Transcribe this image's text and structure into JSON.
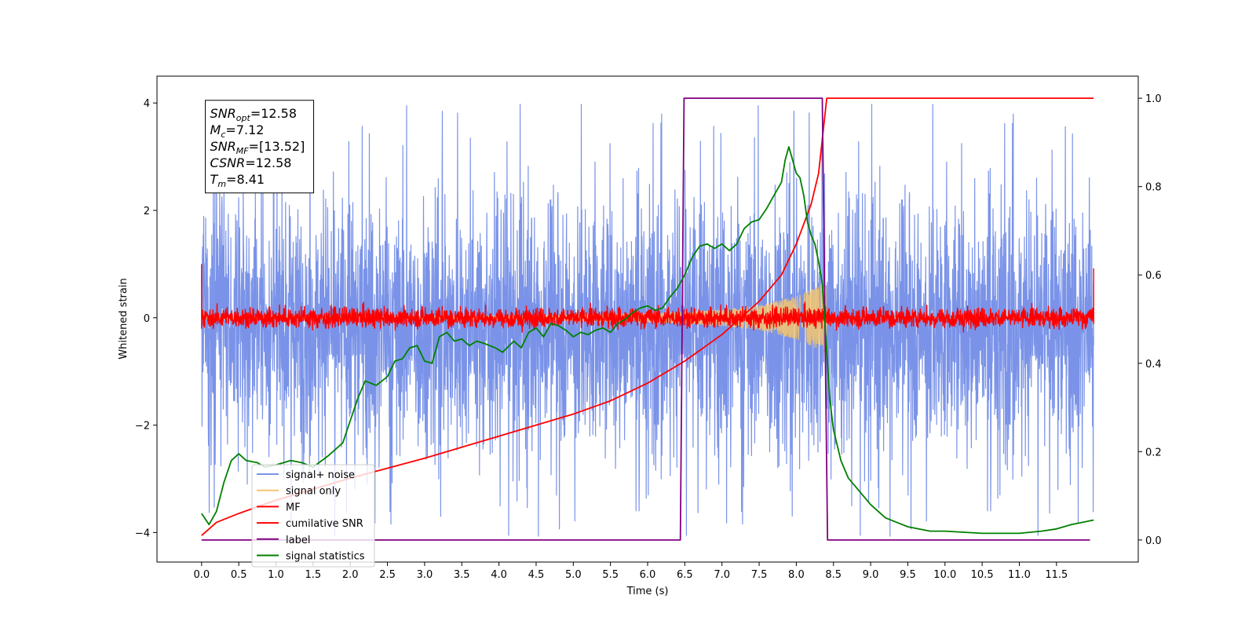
{
  "chart_data": {
    "type": "line",
    "xlabel": "Time (s)",
    "ylabel_left": "Whitened strain",
    "ylabel_right": "",
    "xlim": [
      -0.6,
      12.6
    ],
    "ylim_left": [
      -4.55,
      4.5
    ],
    "ylim_right": [
      -0.05,
      1.05
    ],
    "x_ticks": [
      0.0,
      0.5,
      1.0,
      1.5,
      2.0,
      2.5,
      3.0,
      3.5,
      4.0,
      4.5,
      5.0,
      5.5,
      6.0,
      6.5,
      7.0,
      7.5,
      8.0,
      8.5,
      9.0,
      9.5,
      10.0,
      10.5,
      11.0,
      11.5
    ],
    "x_tick_labels": [
      "0.0",
      "0.5",
      "1.0",
      "1.5",
      "2.0",
      "2.5",
      "3.0",
      "3.5",
      "4.0",
      "4.5",
      "5.0",
      "5.5",
      "6.0",
      "6.5",
      "7.0",
      "7.5",
      "8.0",
      "8.5",
      "9.0",
      "9.5",
      "10.0",
      "10.5",
      "11.0",
      "11.5"
    ],
    "y_ticks_left": [
      -4,
      -2,
      0,
      2,
      4
    ],
    "y_tick_labels_left": [
      "−4",
      "−2",
      "0",
      "2",
      "4"
    ],
    "y_ticks_right": [
      0.0,
      0.2,
      0.4,
      0.6,
      0.8,
      1.0
    ],
    "y_tick_labels_right": [
      "0.0",
      "0.2",
      "0.4",
      "0.6",
      "0.8",
      "1.0"
    ],
    "legend_placement": "lower-left",
    "annotation": {
      "lines": [
        {
          "main": "SNR",
          "sub": "opt",
          "value": "=12.58"
        },
        {
          "main": "M",
          "sub": "c",
          "value": "=7.12"
        },
        {
          "main": "SNR",
          "sub": "MF",
          "value": "=[13.52]"
        },
        {
          "main": "CSNR",
          "sub": "",
          "value": "=12.58"
        },
        {
          "main": "T",
          "sub": "m",
          "value": "=8.41"
        }
      ]
    },
    "series": [
      {
        "name": "signal+ noise",
        "axis": "left",
        "color": "#7a93e8",
        "kind": "noise_band",
        "x_range": [
          0.0,
          12.0
        ],
        "upper_envelope": [
          [
            0.0,
            1.3
          ],
          [
            0.5,
            1.3
          ],
          [
            1.0,
            1.3
          ],
          [
            2.0,
            1.4
          ],
          [
            3.0,
            1.3
          ],
          [
            4.0,
            1.3
          ],
          [
            5.0,
            1.3
          ],
          [
            6.0,
            1.3
          ],
          [
            6.5,
            1.4
          ],
          [
            7.0,
            1.4
          ],
          [
            7.5,
            1.4
          ],
          [
            8.0,
            1.5
          ],
          [
            8.4,
            1.5
          ],
          [
            8.5,
            1.3
          ],
          [
            9.0,
            1.3
          ],
          [
            10.0,
            1.3
          ],
          [
            11.0,
            1.3
          ],
          [
            12.0,
            1.3
          ]
        ],
        "lower_envelope": [
          [
            0.0,
            -1.6
          ],
          [
            1.0,
            -1.6
          ],
          [
            2.0,
            -1.6
          ],
          [
            3.0,
            -1.6
          ],
          [
            4.0,
            -1.6
          ],
          [
            5.0,
            -1.6
          ],
          [
            6.0,
            -1.6
          ],
          [
            7.0,
            -1.6
          ],
          [
            8.0,
            -1.7
          ],
          [
            8.4,
            -1.7
          ],
          [
            8.5,
            -1.6
          ],
          [
            10.0,
            -1.6
          ],
          [
            12.0,
            -1.6
          ]
        ],
        "spike_extent": [
          -4.15,
          4.1
        ]
      },
      {
        "name": "signal only",
        "axis": "left",
        "color": "#f5c56e",
        "kind": "chirp",
        "amplitude": [
          [
            0.0,
            0.02
          ],
          [
            4.0,
            0.04
          ],
          [
            5.0,
            0.06
          ],
          [
            6.0,
            0.09
          ],
          [
            6.5,
            0.11
          ],
          [
            7.0,
            0.16
          ],
          [
            7.5,
            0.23
          ],
          [
            8.0,
            0.4
          ],
          [
            8.3,
            0.6
          ],
          [
            8.4,
            0.68
          ],
          [
            8.41,
            0.0
          ],
          [
            12.0,
            0.0
          ]
        ]
      },
      {
        "name": "MF",
        "axis": "left",
        "color": "#ff0000",
        "kind": "noise_band",
        "x_range": [
          0.0,
          12.0
        ],
        "upper_envelope": [
          [
            0.0,
            0.12
          ],
          [
            12.0,
            0.12
          ]
        ],
        "lower_envelope": [
          [
            0.0,
            -0.12
          ],
          [
            12.0,
            -0.12
          ]
        ],
        "spike_extent": [
          -0.18,
          0.25
        ],
        "end_points": [
          [
            0.0,
            1.0
          ],
          [
            12.0,
            0.92
          ]
        ]
      },
      {
        "name": "cumilative SNR",
        "axis": "right",
        "color": "#ff0000",
        "points": [
          [
            0.0,
            0.01
          ],
          [
            0.2,
            0.04
          ],
          [
            0.5,
            0.06
          ],
          [
            1.0,
            0.09
          ],
          [
            2.0,
            0.14
          ],
          [
            3.0,
            0.185
          ],
          [
            4.0,
            0.235
          ],
          [
            5.0,
            0.285
          ],
          [
            5.5,
            0.315
          ],
          [
            6.0,
            0.355
          ],
          [
            6.5,
            0.405
          ],
          [
            7.0,
            0.465
          ],
          [
            7.5,
            0.54
          ],
          [
            7.8,
            0.6
          ],
          [
            8.0,
            0.67
          ],
          [
            8.2,
            0.76
          ],
          [
            8.3,
            0.83
          ],
          [
            8.41,
            1.0
          ],
          [
            12.0,
            1.0
          ]
        ]
      },
      {
        "name": "label",
        "axis": "right",
        "color": "#800080",
        "points": [
          [
            0.0,
            0.0
          ],
          [
            6.44,
            0.0
          ],
          [
            6.49,
            1.0
          ],
          [
            8.35,
            1.0
          ],
          [
            8.42,
            0.0
          ],
          [
            11.95,
            0.0
          ]
        ]
      },
      {
        "name": "signal statistics",
        "axis": "right",
        "color": "#008000",
        "points": [
          [
            0.0,
            0.06
          ],
          [
            0.1,
            0.035
          ],
          [
            0.2,
            0.065
          ],
          [
            0.3,
            0.13
          ],
          [
            0.4,
            0.18
          ],
          [
            0.5,
            0.195
          ],
          [
            0.6,
            0.18
          ],
          [
            0.75,
            0.175
          ],
          [
            0.85,
            0.165
          ],
          [
            1.0,
            0.17
          ],
          [
            1.2,
            0.18
          ],
          [
            1.35,
            0.175
          ],
          [
            1.5,
            0.165
          ],
          [
            1.7,
            0.19
          ],
          [
            1.9,
            0.22
          ],
          [
            2.0,
            0.27
          ],
          [
            2.1,
            0.32
          ],
          [
            2.2,
            0.36
          ],
          [
            2.35,
            0.35
          ],
          [
            2.5,
            0.37
          ],
          [
            2.6,
            0.405
          ],
          [
            2.7,
            0.41
          ],
          [
            2.8,
            0.435
          ],
          [
            2.9,
            0.44
          ],
          [
            3.0,
            0.405
          ],
          [
            3.1,
            0.4
          ],
          [
            3.2,
            0.46
          ],
          [
            3.3,
            0.47
          ],
          [
            3.4,
            0.45
          ],
          [
            3.5,
            0.455
          ],
          [
            3.6,
            0.44
          ],
          [
            3.7,
            0.45
          ],
          [
            3.8,
            0.445
          ],
          [
            3.95,
            0.435
          ],
          [
            4.05,
            0.425
          ],
          [
            4.2,
            0.45
          ],
          [
            4.3,
            0.435
          ],
          [
            4.4,
            0.47
          ],
          [
            4.5,
            0.48
          ],
          [
            4.6,
            0.46
          ],
          [
            4.7,
            0.49
          ],
          [
            4.8,
            0.485
          ],
          [
            4.9,
            0.475
          ],
          [
            5.0,
            0.46
          ],
          [
            5.1,
            0.47
          ],
          [
            5.2,
            0.465
          ],
          [
            5.3,
            0.475
          ],
          [
            5.4,
            0.48
          ],
          [
            5.5,
            0.47
          ],
          [
            5.6,
            0.49
          ],
          [
            5.7,
            0.5
          ],
          [
            5.8,
            0.515
          ],
          [
            5.9,
            0.525
          ],
          [
            6.0,
            0.53
          ],
          [
            6.1,
            0.52
          ],
          [
            6.2,
            0.525
          ],
          [
            6.3,
            0.55
          ],
          [
            6.4,
            0.57
          ],
          [
            6.5,
            0.6
          ],
          [
            6.6,
            0.64
          ],
          [
            6.7,
            0.665
          ],
          [
            6.8,
            0.67
          ],
          [
            6.9,
            0.66
          ],
          [
            7.0,
            0.67
          ],
          [
            7.1,
            0.655
          ],
          [
            7.2,
            0.67
          ],
          [
            7.3,
            0.705
          ],
          [
            7.4,
            0.72
          ],
          [
            7.5,
            0.725
          ],
          [
            7.6,
            0.75
          ],
          [
            7.7,
            0.78
          ],
          [
            7.8,
            0.81
          ],
          [
            7.85,
            0.86
          ],
          [
            7.9,
            0.89
          ],
          [
            7.95,
            0.86
          ],
          [
            8.0,
            0.83
          ],
          [
            8.05,
            0.82
          ],
          [
            8.1,
            0.78
          ],
          [
            8.15,
            0.72
          ],
          [
            8.2,
            0.69
          ],
          [
            8.25,
            0.67
          ],
          [
            8.3,
            0.63
          ],
          [
            8.35,
            0.58
          ],
          [
            8.4,
            0.45
          ],
          [
            8.45,
            0.32
          ],
          [
            8.5,
            0.25
          ],
          [
            8.6,
            0.18
          ],
          [
            8.7,
            0.14
          ],
          [
            8.8,
            0.12
          ],
          [
            9.0,
            0.08
          ],
          [
            9.2,
            0.05
          ],
          [
            9.5,
            0.03
          ],
          [
            9.8,
            0.02
          ],
          [
            10.0,
            0.02
          ],
          [
            10.5,
            0.015
          ],
          [
            11.0,
            0.015
          ],
          [
            11.3,
            0.02
          ],
          [
            11.5,
            0.025
          ],
          [
            11.7,
            0.035
          ],
          [
            12.0,
            0.045
          ]
        ]
      }
    ]
  }
}
